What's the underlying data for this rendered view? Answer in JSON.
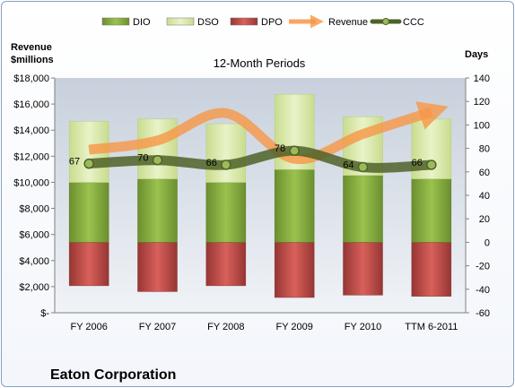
{
  "chart_data": {
    "type": "bar",
    "title": "12-Month Periods",
    "company": "Eaton Corporation",
    "categories": [
      "FY 2006",
      "FY 2007",
      "FY 2008",
      "FY 2009",
      "FY 2010",
      "TTM 6-2011"
    ],
    "left_axis": {
      "label_line1": "Revenue",
      "label_line2": "$millions",
      "range": [
        0,
        18000
      ],
      "ticks": [
        "$-",
        "$2,000",
        "$4,000",
        "$6,000",
        "$8,000",
        "$10,000",
        "$12,000",
        "$14,000",
        "$16,000",
        "$18,000"
      ]
    },
    "right_axis": {
      "label": "Days",
      "range": [
        -60,
        140
      ],
      "ticks": [
        "-60",
        "-40",
        "-20",
        "0",
        "20",
        "40",
        "60",
        "80",
        "100",
        "120",
        "140"
      ]
    },
    "series": [
      {
        "name": "DIO",
        "axis": "right",
        "values": [
          51,
          54,
          51,
          62,
          57,
          54
        ],
        "color": "#7aa23a"
      },
      {
        "name": "DSO",
        "axis": "right",
        "values": [
          52,
          51,
          50,
          64,
          50,
          51
        ],
        "color": "#d6e7a6"
      },
      {
        "name": "DPO",
        "axis": "right",
        "values": [
          -37,
          -42,
          -37,
          -47,
          -45,
          -46
        ],
        "color": "#c0504d"
      },
      {
        "name": "Revenue",
        "axis": "left",
        "values": [
          12500,
          13200,
          15300,
          11800,
          13700,
          15400
        ],
        "color": "#f79646"
      },
      {
        "name": "CCC",
        "axis": "right",
        "values": [
          67,
          70,
          66,
          78,
          64,
          66
        ],
        "color": "#4f6228"
      }
    ],
    "data_labels": [
      "67",
      "70",
      "66",
      "78",
      "64",
      "66"
    ],
    "grid": false,
    "legend_position": "top"
  }
}
